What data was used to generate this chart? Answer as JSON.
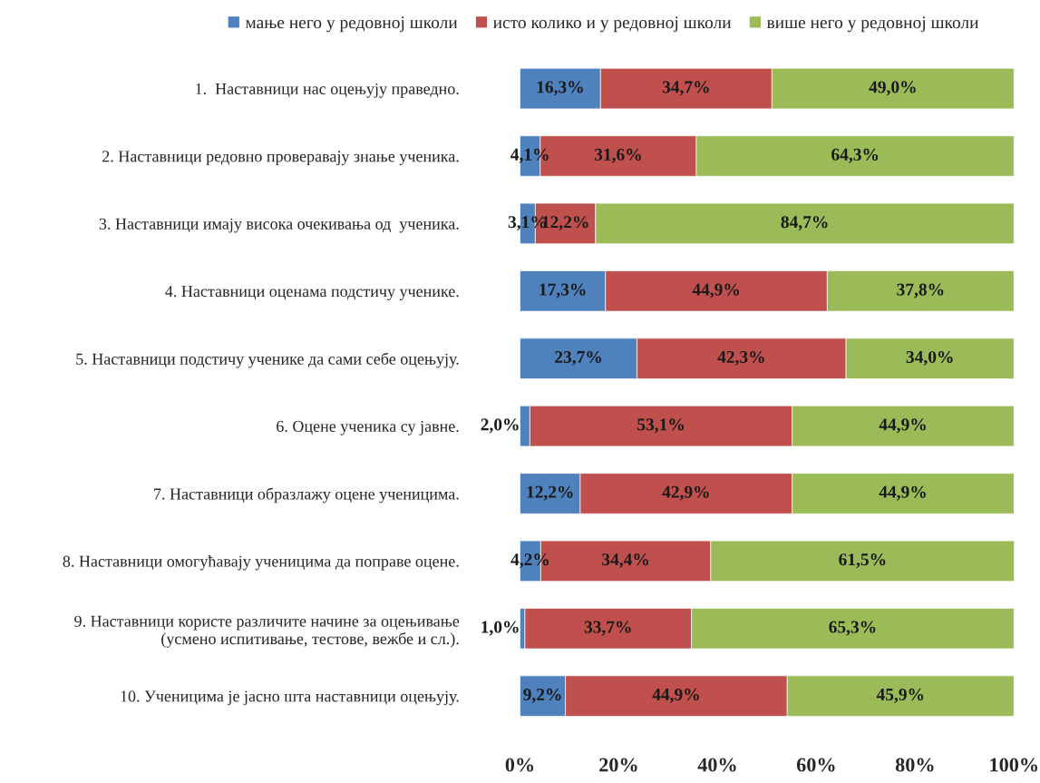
{
  "chart_data": {
    "type": "bar",
    "orientation": "horizontal",
    "stacked": true,
    "categories": [
      "1.  Наставници нас оцењују праведно.",
      "2. Наставници редовно проверавају знање ученика.",
      "3. Наставници имају висока очекивања од  ученика.",
      "4. Наставници оценама подстичу ученике.",
      "5. Наставници подстичу ученике да сами себе оцењују.",
      "6. Оцене ученика су јавне.",
      "7. Наставници образлажу оцене ученицима.",
      "8. Наставници омогућавају ученицима да поправе оцене.",
      "9. Наставници користе различите начине за оцењивање\n(усмено испитивање, тестове, вежбе и сл.).",
      "10. Ученицима је јасно шта наставници оцењују."
    ],
    "series": [
      {
        "name": "мање него у редовној школи",
        "color": "#4f81bd",
        "values": [
          16.3,
          4.1,
          3.1,
          17.3,
          23.7,
          2.0,
          12.2,
          4.2,
          1.0,
          9.2
        ],
        "value_labels": [
          "16,3%",
          "4,1%",
          "3,1%",
          "17,3%",
          "23,7%",
          "2,0%",
          "12,2%",
          "4,2%",
          "1,0%",
          "9,2%"
        ]
      },
      {
        "name": "исто колико и у редовној школи",
        "color": "#c0504d",
        "values": [
          34.7,
          31.6,
          12.2,
          44.9,
          42.3,
          53.1,
          42.9,
          34.4,
          33.7,
          44.9
        ],
        "value_labels": [
          "34,7%",
          "31,6%",
          "12,2%",
          "44,9%",
          "42,3%",
          "53,1%",
          "42,9%",
          "34,4%",
          "33,7%",
          "44,9%"
        ]
      },
      {
        "name": "више него у редовној школи",
        "color": "#9bbb59",
        "values": [
          49.0,
          64.3,
          84.7,
          37.8,
          34.0,
          44.9,
          44.9,
          61.5,
          65.3,
          45.9
        ],
        "value_labels": [
          "49,0%",
          "64,3%",
          "84,7%",
          "37,8%",
          "34,0%",
          "44,9%",
          "44,9%",
          "61,5%",
          "65,3%",
          "45,9%"
        ]
      }
    ],
    "xlim": [
      0,
      100
    ],
    "xticks": [
      {
        "value": 0,
        "label": "0%"
      },
      {
        "value": 20,
        "label": "20%"
      },
      {
        "value": 40,
        "label": "40%"
      },
      {
        "value": 60,
        "label": "60%"
      },
      {
        "value": 80,
        "label": "80%"
      },
      {
        "value": 100,
        "label": "100%"
      }
    ],
    "legend": "top",
    "grid": false
  }
}
